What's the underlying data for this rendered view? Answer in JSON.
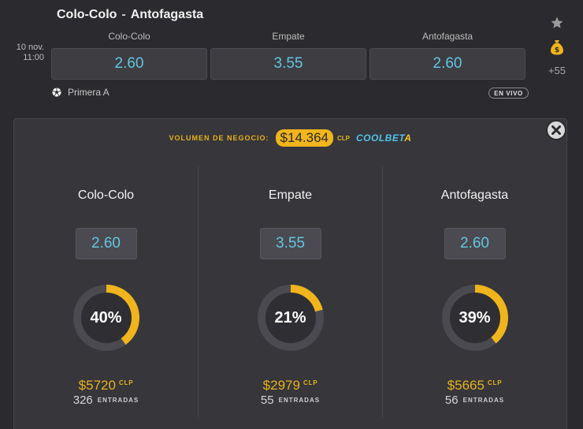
{
  "match": {
    "home": "Colo-Colo",
    "separator": "-",
    "away": "Antofagasta",
    "date_line1": "10 nov.",
    "date_line2": "11:00",
    "league": "Primera A",
    "live_badge": "EN VIVO",
    "more_markets": "+55"
  },
  "odds": [
    {
      "label": "Colo-Colo",
      "value": "2.60"
    },
    {
      "label": "Empate",
      "value": "3.55"
    },
    {
      "label": "Antofagasta",
      "value": "2.60"
    }
  ],
  "panel": {
    "volume_label": "VOLUMEN DE NEGOCIO:",
    "volume_amount": "$14.364",
    "volume_currency": "CLP",
    "brand_part1": "COOLBET",
    "brand_part2": "A"
  },
  "outcomes": [
    {
      "name": "Colo-Colo",
      "odd": "2.60",
      "percent_label": "40%",
      "percent": 40,
      "amount": "$5720",
      "currency": "CLP",
      "entries": "326",
      "entries_label": "ENTRADAS"
    },
    {
      "name": "Empate",
      "odd": "3.55",
      "percent_label": "21%",
      "percent": 21,
      "amount": "$2979",
      "currency": "CLP",
      "entries": "55",
      "entries_label": "ENTRADAS"
    },
    {
      "name": "Antofagasta",
      "odd": "2.60",
      "percent_label": "39%",
      "percent": 39,
      "amount": "$5665",
      "currency": "CLP",
      "entries": "56",
      "entries_label": "ENTRADAS"
    }
  ],
  "colors": {
    "accent_gold": "#f0b41c",
    "odds_blue": "#63c6e0",
    "background": "#2b2b2f",
    "donut_track": "#4a4a50"
  },
  "icons": {
    "favorite": "star-icon",
    "cashout": "money-bag-icon",
    "sport": "soccer-ball-icon",
    "close": "close-icon"
  }
}
